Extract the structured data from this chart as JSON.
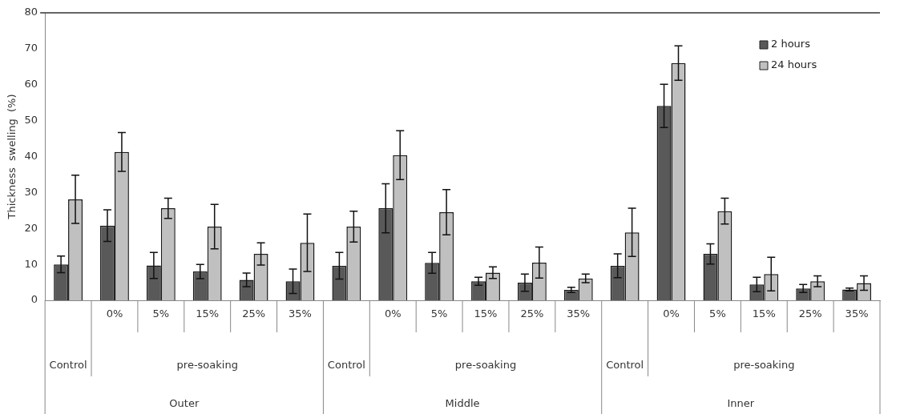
{
  "chart_data": {
    "type": "bar",
    "ylabel": "Thickness  swelling  (%)",
    "categories": [
      null,
      "0%",
      "5%",
      "15%",
      "25%",
      "35%",
      null,
      "0%",
      "5%",
      "15%",
      "25%",
      "35%",
      null,
      "0%",
      "5%",
      "15%",
      "25%",
      "35%"
    ],
    "series": [
      {
        "name": "2 hours",
        "color": "#595959",
        "values": [
          10,
          20.8,
          9.7,
          8,
          5.7,
          5.3,
          9.6,
          25.6,
          10.4,
          5.3,
          4.9,
          2.9,
          9.6,
          54.1,
          12.9,
          4.4,
          3.3,
          3
        ],
        "errors": [
          2.3,
          4.4,
          3.6,
          2,
          1.9,
          3.4,
          3.7,
          6.8,
          2.9,
          1.1,
          2.4,
          0.7,
          3.3,
          6,
          2.8,
          2,
          1.1,
          0.4
        ]
      },
      {
        "name": "24 hours",
        "color": "#c0c0c0",
        "values": [
          28.1,
          41.3,
          25.6,
          20.5,
          12.9,
          16,
          20.5,
          40.4,
          24.5,
          7.7,
          10.5,
          6.1,
          18.9,
          66,
          24.8,
          7.3,
          5.3,
          4.8
        ],
        "errors": [
          6.7,
          5.4,
          2.8,
          6.2,
          3.1,
          8,
          4.3,
          6.8,
          6.3,
          1.6,
          4.3,
          1.2,
          6.7,
          4.8,
          3.6,
          4.7,
          1.5,
          2
        ]
      }
    ],
    "annotations": [
      "Control",
      "pre-soaking",
      "Control",
      "pre-soaking",
      "Control",
      "pre-soaking",
      "Outer",
      "Middle",
      "Inner"
    ],
    "ylim": [
      0,
      80
    ],
    "yticks": [
      0,
      10,
      20,
      30,
      40,
      50,
      60,
      70,
      80
    ],
    "grid": false,
    "legend": "top right"
  }
}
